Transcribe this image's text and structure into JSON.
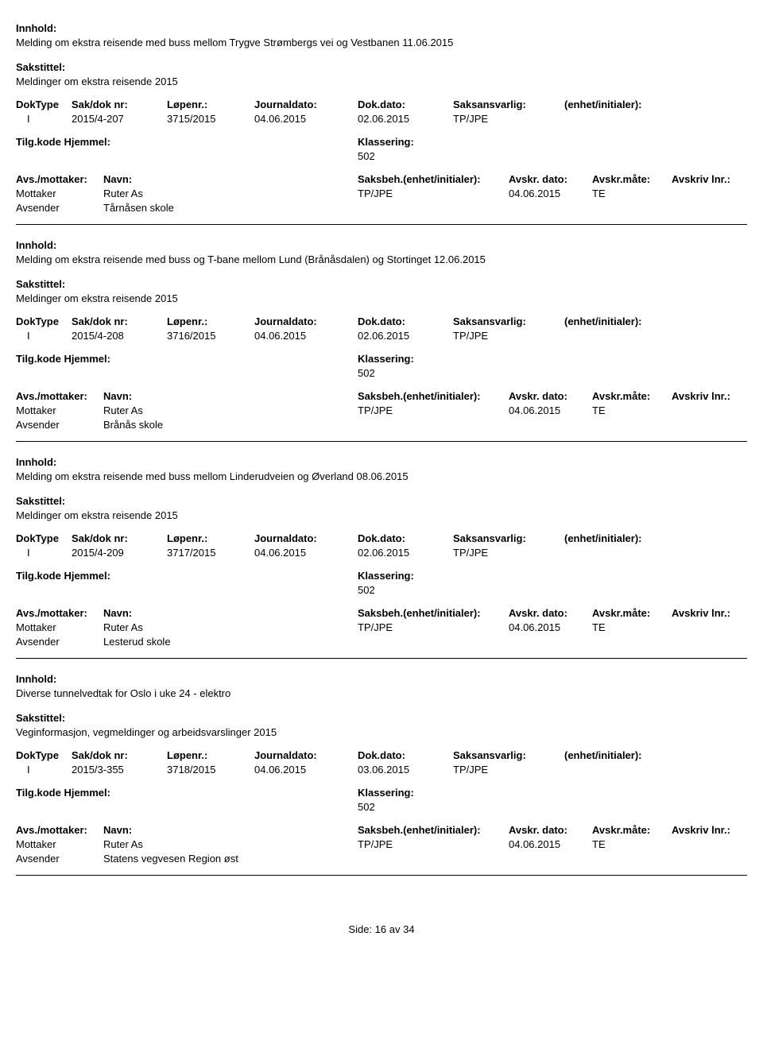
{
  "labels": {
    "innhold": "Innhold:",
    "sakstittel": "Sakstittel:",
    "doktype": "DokType",
    "sakdok": "Sak/dok nr:",
    "lopenr": "Løpenr.:",
    "journaldato": "Journaldato:",
    "dokdato": "Dok.dato:",
    "saksansvarlig": "Saksansvarlig:",
    "enhet": "(enhet/initialer):",
    "tilgkode": "Tilg.kode",
    "hjemmel": "Hjemmel:",
    "klassering": "Klassering:",
    "avsmottaker": "Avs./mottaker:",
    "navn": "Navn:",
    "saksbeh": "Saksbeh.(enhet/initialer):",
    "avskrdato": "Avskr. dato:",
    "avskrmate": "Avskr.måte:",
    "avskrivlnr": "Avskriv lnr.:",
    "mottaker": "Mottaker",
    "avsender": "Avsender"
  },
  "entries": [
    {
      "innhold": "Melding om ekstra reisende med buss mellom Trygve Strømbergs vei og Vestbanen 11.06.2015",
      "sakstittel": "Meldinger om ekstra reisende 2015",
      "doktype": "I",
      "sakdok": "2015/4-207",
      "lopenr": "3715/2015",
      "journaldato": "04.06.2015",
      "dokdato": "02.06.2015",
      "saksansvarlig": "TP/JPE",
      "klassering": "502",
      "mottaker_navn": "Ruter As",
      "saksbeh_val": "TP/JPE",
      "avskrdato_val": "04.06.2015",
      "avskrmate_val": "TE",
      "avsender_navn": "Tårnåsen skole"
    },
    {
      "innhold": "Melding om ekstra reisende med buss og T-bane mellom Lund (Brånåsdalen) og Stortinget 12.06.2015",
      "sakstittel": "Meldinger om ekstra reisende 2015",
      "doktype": "I",
      "sakdok": "2015/4-208",
      "lopenr": "3716/2015",
      "journaldato": "04.06.2015",
      "dokdato": "02.06.2015",
      "saksansvarlig": "TP/JPE",
      "klassering": "502",
      "mottaker_navn": "Ruter As",
      "saksbeh_val": "TP/JPE",
      "avskrdato_val": "04.06.2015",
      "avskrmate_val": "TE",
      "avsender_navn": "Brånås skole"
    },
    {
      "innhold": "Melding om ekstra reisende med buss mellom Linderudveien og Øverland 08.06.2015",
      "sakstittel": "Meldinger om ekstra reisende 2015",
      "doktype": "I",
      "sakdok": "2015/4-209",
      "lopenr": "3717/2015",
      "journaldato": "04.06.2015",
      "dokdato": "02.06.2015",
      "saksansvarlig": "TP/JPE",
      "klassering": "502",
      "mottaker_navn": "Ruter As",
      "saksbeh_val": "TP/JPE",
      "avskrdato_val": "04.06.2015",
      "avskrmate_val": "TE",
      "avsender_navn": "Lesterud skole"
    },
    {
      "innhold": "Diverse tunnelvedtak for Oslo i uke 24 - elektro",
      "sakstittel": "Veginformasjon, vegmeldinger og arbeidsvarslinger 2015",
      "doktype": "I",
      "sakdok": "2015/3-355",
      "lopenr": "3718/2015",
      "journaldato": "04.06.2015",
      "dokdato": "03.06.2015",
      "saksansvarlig": "TP/JPE",
      "klassering": "502",
      "mottaker_navn": "Ruter As",
      "saksbeh_val": "TP/JPE",
      "avskrdato_val": "04.06.2015",
      "avskrmate_val": "TE",
      "avsender_navn": "Statens vegvesen Region øst"
    }
  ],
  "footer": {
    "side": "Side:",
    "page": "16",
    "av": "av",
    "total": "34"
  }
}
